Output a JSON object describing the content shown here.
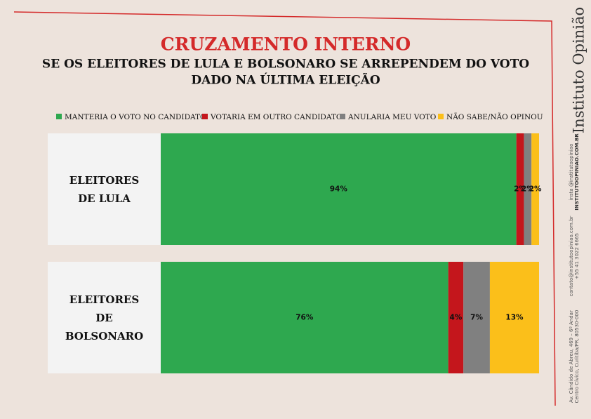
{
  "chart_data": {
    "type": "stacked-bar-horizontal",
    "title": "CRUZAMENTO INTERNO",
    "subtitle": [
      "SE OS ELEITORES DE LULA E BOLSONARO SE ARREPENDEM DO VOTO",
      "DADO NA ÚLTIMA ELEIÇÃO"
    ],
    "categories": [
      "ELEITORES DE LULA",
      "ELEITORES DE BOLSONARO"
    ],
    "xlim": [
      0,
      100
    ],
    "series": [
      {
        "name": "MANTERIA O VOTO NO CANDIDATO",
        "color": "#2ea84f",
        "values": [
          94,
          76
        ],
        "value_labels": [
          "94%",
          "76%"
        ]
      },
      {
        "name": "VOTARIA EM OUTRO CANDIDATO",
        "color": "#c4161c",
        "values": [
          2,
          4
        ],
        "value_labels": [
          "2%",
          "4%"
        ]
      },
      {
        "name": "ANULARIA MEU VOTO",
        "color": "#808080",
        "values": [
          2,
          7
        ],
        "value_labels": [
          "2%",
          "7%"
        ]
      },
      {
        "name": "NÃO SABE/NÃO OPINOU",
        "color": "#fbbf1a",
        "values": [
          2,
          13
        ],
        "value_labels": [
          "2%",
          "13%"
        ]
      }
    ]
  },
  "branding": {
    "name": "Instituto Opinião",
    "social": [
      "insta @institutoopiniao",
      "INSTITUTOOPINIAO.COM.BR"
    ],
    "contact": [
      "contato@institutoopiniao.com.br",
      "+55 41 3022 6665"
    ],
    "address": [
      "Av. Cândido de Abreu, 469 – 6º Andar",
      "Centro Cívico, Curitiba/PR, 80530-000"
    ]
  }
}
